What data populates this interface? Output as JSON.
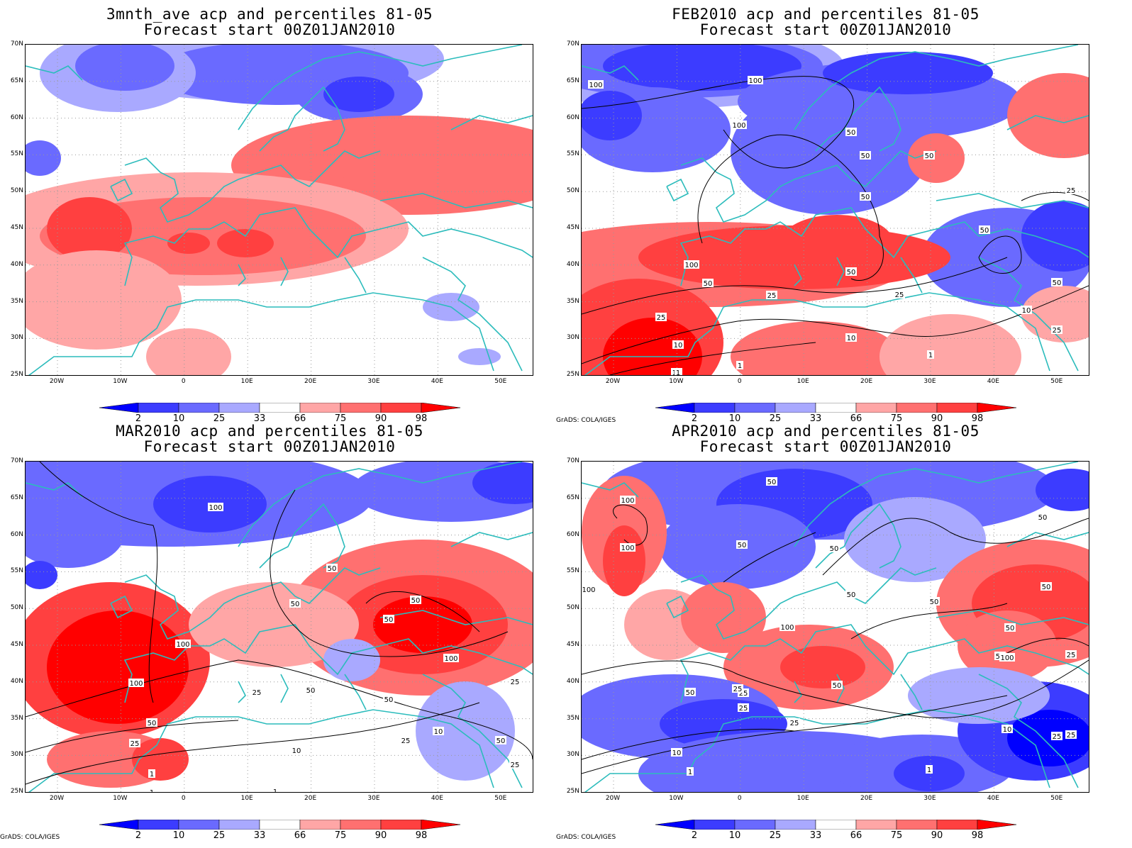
{
  "credit": "GrADS: COLA/IGES",
  "lat_labels": [
    "70N",
    "65N",
    "60N",
    "55N",
    "50N",
    "45N",
    "40N",
    "35N",
    "30N",
    "25N"
  ],
  "lon_labels": [
    "20W",
    "10W",
    "0",
    "10E",
    "20E",
    "30E",
    "40E",
    "50E"
  ],
  "colorbar": {
    "labels": [
      "2",
      "10",
      "25",
      "33",
      "66",
      "75",
      "90",
      "98"
    ],
    "colors": [
      "#0000ff",
      "#3c3cff",
      "#6a6aff",
      "#a9a9ff",
      "#ffffff",
      "#ffa6a6",
      "#ff7070",
      "#ff4040",
      "#ff0000"
    ]
  },
  "colors": {
    "coast": "#2cbcbc",
    "contour": "#000000",
    "grid": "#999999"
  },
  "panels": [
    {
      "id": "p1",
      "title1": "3mnth_ave acp and percentiles 81-05",
      "title2": "Forecast start 00Z01JAN2010",
      "credit": false,
      "contour_labels": []
    },
    {
      "id": "p2",
      "title1": "FEB2010 acp and percentiles 81-05",
      "title2": "Forecast start 00Z01JAN2010",
      "credit": true,
      "contour_labels": [
        "100",
        "100",
        "100",
        "50",
        "50",
        "50",
        "50",
        "25",
        "50",
        "100",
        "50",
        "50",
        "25",
        "25",
        "10",
        "10",
        "1",
        "10",
        "25",
        "1",
        "10",
        "25",
        "50",
        "1"
      ]
    },
    {
      "id": "p3",
      "title1": "MAR2010 acp and percentiles 81-05",
      "title2": "Forecast start 00Z01JAN2010",
      "credit": true,
      "contour_labels": [
        "100",
        "50",
        "50",
        "50",
        "100",
        "50",
        "100",
        "100",
        "50",
        "50",
        "25",
        "50",
        "25",
        "10",
        "10",
        "25",
        "50",
        "1",
        "1",
        "25",
        "25",
        "1"
      ]
    },
    {
      "id": "p4",
      "title1": "APR2010 acp and percentiles 81-05",
      "title2": "Forecast start 00Z01JAN2010",
      "credit": true,
      "contour_labels": [
        "50",
        "100",
        "100",
        "100",
        "50",
        "50",
        "50",
        "50",
        "50",
        "100",
        "50",
        "25",
        "50",
        "25",
        "25",
        "25",
        "10",
        "1",
        "10",
        "25",
        "1",
        "50",
        "50",
        "100",
        "25",
        "50",
        "25"
      ]
    }
  ]
}
